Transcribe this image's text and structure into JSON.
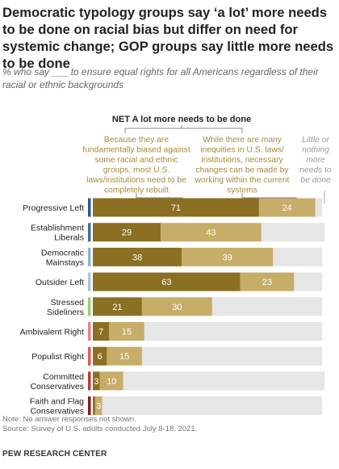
{
  "title": "Democratic typology groups say ‘a lot’ more needs to be done on racial bias but differ on need for systemic change; GOP groups say little more needs to be done",
  "subtitle": "% who say ___ to ensure equal rights for all Americans regardless of their racial or ethnic backgrounds",
  "note": "Note: No answer responses not shown.",
  "source": "Source: Survey of U.S. adults conducted July 8-18, 2021.",
  "organization": "PEW RESEARCH CENTER",
  "colors": {
    "rebuilt": "#8b7023",
    "changes": "#c6ad68",
    "little": "#e6e6e6",
    "header_text": "#a8893b",
    "little_text": "#999999"
  },
  "chart_data": {
    "type": "bar",
    "orientation": "horizontal",
    "stacked": true,
    "xlim": [
      0,
      100
    ],
    "group_header": "NET A lot more needs to be done",
    "categories": [
      {
        "label": "Progressive Left",
        "marker_color": "#2b5a86"
      },
      {
        "label": "Establishment Liberals",
        "marker_color": "#3f6e9c"
      },
      {
        "label": "Democratic Mainstays",
        "marker_color": "#8fb3d3"
      },
      {
        "label": "Outsider Left",
        "marker_color": "#a9c6df"
      },
      {
        "label": "Stressed Sideliners",
        "marker_color": "#9ecb6d"
      },
      {
        "label": "Ambivalent Right",
        "marker_color": "#f08080"
      },
      {
        "label": "Populist Right",
        "marker_color": "#e8545a"
      },
      {
        "label": "Committed Conservatives",
        "marker_color": "#c0392b"
      },
      {
        "label": "Faith and Flag Conservatives",
        "marker_color": "#8b1a1a"
      }
    ],
    "series": [
      {
        "name": "Because they are fundamentally biased against some racial and ethnic groups, most U.S. laws/institutions need to be completely rebuilt",
        "values": [
          71,
          29,
          38,
          63,
          21,
          7,
          6,
          3,
          1
        ]
      },
      {
        "name": "While there are many inequities in U.S. laws/ institutions, necessary changes can be made by working within the current systems",
        "values": [
          24,
          43,
          39,
          23,
          30,
          15,
          15,
          10,
          3
        ]
      },
      {
        "name": "Little or nothing more needs to be done",
        "values": [
          3,
          27,
          21,
          12,
          47,
          76,
          77,
          86,
          94
        ]
      }
    ],
    "data_labels": [
      [
        "71",
        "24"
      ],
      [
        "29",
        "43"
      ],
      [
        "38",
        "39"
      ],
      [
        "63",
        "23"
      ],
      [
        "21",
        "30"
      ],
      [
        "7",
        "15"
      ],
      [
        "6",
        "15"
      ],
      [
        "3",
        "10"
      ],
      [
        "",
        "3"
      ]
    ]
  }
}
